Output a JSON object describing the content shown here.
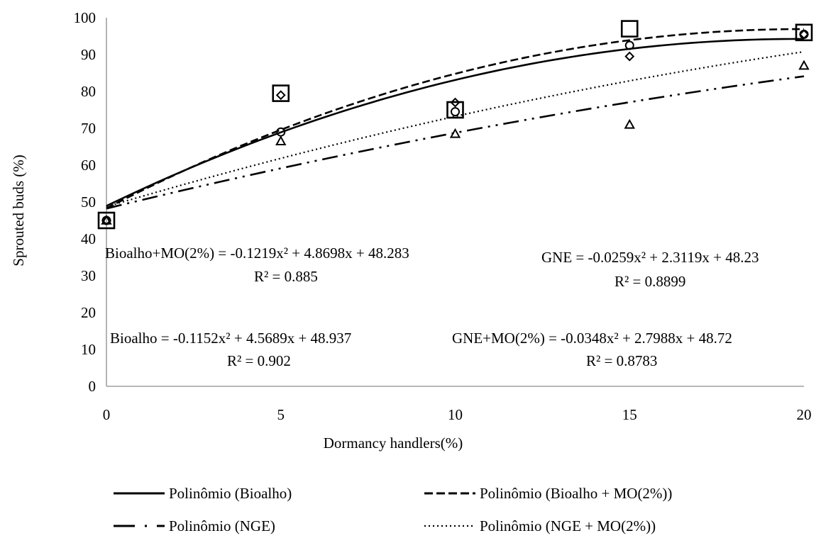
{
  "chart_data": {
    "type": "scatter",
    "title": "",
    "xlabel": "Dormancy handlers(%)",
    "ylabel": "Sprouted buds (%)",
    "xlim": [
      0,
      20
    ],
    "ylim": [
      0,
      100
    ],
    "x_ticks": [
      0,
      5,
      10,
      15,
      20
    ],
    "y_ticks": [
      0,
      10,
      20,
      30,
      40,
      50,
      60,
      70,
      80,
      90,
      100
    ],
    "grid": false,
    "legend_position": "bottom",
    "x": [
      0,
      5,
      10,
      15,
      20
    ],
    "series": [
      {
        "marker": "circle",
        "values": [
          45,
          69,
          74.5,
          92.5,
          95.5
        ]
      },
      {
        "marker": "diamond",
        "values": [
          45,
          79,
          77,
          89.5,
          95.5
        ]
      },
      {
        "marker": "triangle",
        "values": [
          45,
          66.5,
          68.5,
          71,
          87
        ]
      },
      {
        "marker": "square",
        "values": [
          45,
          79.5,
          75,
          97,
          96
        ]
      }
    ],
    "trendlines": [
      {
        "name": "Polinômio (Bioalho)",
        "style": "solid",
        "coefficients": [
          -0.1152,
          4.5689,
          48.937
        ]
      },
      {
        "name": "Polinômio (Bioalho + MO(2%))",
        "style": "dashed",
        "coefficients": [
          -0.1219,
          4.8698,
          48.283
        ]
      },
      {
        "name": "Polinômio (NGE)",
        "style": "dashdotdot",
        "coefficients": [
          -0.0259,
          2.3119,
          48.23
        ]
      },
      {
        "name": "Polinômio (NGE + MO(2%))",
        "style": "dotted",
        "coefficients": [
          -0.0348,
          2.7988,
          48.72
        ]
      }
    ],
    "annotations": [
      {
        "lines": [
          "Bioalho+MO(2%) = -0.1219x² + 4.8698x + 48.283",
          "R² = 0.885"
        ]
      },
      {
        "lines": [
          "GNE = -0.0259x² + 2.3119x + 48.23",
          "R² = 0.8899"
        ]
      },
      {
        "lines": [
          "Bioalho = -0.1152x² + 4.5689x + 48.937",
          "R² = 0.902"
        ]
      },
      {
        "lines": [
          "GNE+MO(2%) = -0.0348x² + 2.7988x + 48.72",
          "R² = 0.8783"
        ]
      }
    ]
  }
}
